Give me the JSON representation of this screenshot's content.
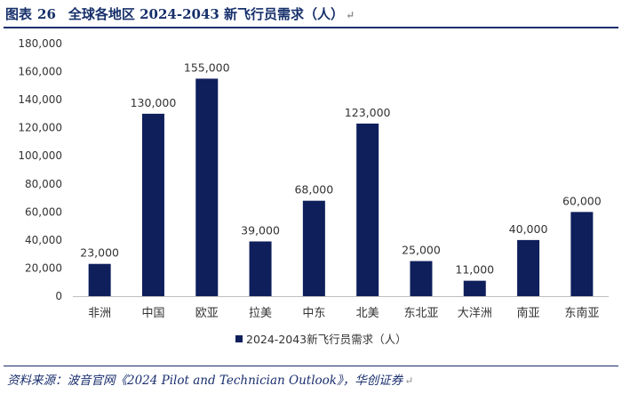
{
  "header": {
    "figure_label": "图表",
    "figure_number": "26",
    "title": "全球各地区 2024-2043 新飞行员需求（人）",
    "para_mark": "↵"
  },
  "source": {
    "text": "资料来源：波音官网《2024 Pilot and Technician Outlook》，华创证券",
    "para_mark": "↵"
  },
  "chart_data": {
    "type": "bar",
    "categories": [
      "非洲",
      "中国",
      "欧亚",
      "拉美",
      "中东",
      "北美",
      "东北亚",
      "大洋洲",
      "南亚",
      "东南亚"
    ],
    "series": [
      {
        "name": "2024-2043新飞行员需求（人）",
        "values": [
          23000,
          130000,
          155000,
          39000,
          68000,
          123000,
          25000,
          11000,
          40000,
          60000
        ],
        "color": "#0f1f5c"
      }
    ],
    "data_labels": [
      "23,000",
      "130,000",
      "155,000",
      "39,000",
      "68,000",
      "123,000",
      "25,000",
      "11,000",
      "40,000",
      "60,000"
    ],
    "y_ticks": [
      "0",
      "20,000",
      "40,000",
      "60,000",
      "80,000",
      "100,000",
      "120,000",
      "140,000",
      "160,000",
      "180,000"
    ],
    "ylim": [
      0,
      180000
    ],
    "y_step": 20000,
    "grid": false,
    "legend_position": "bottom"
  }
}
